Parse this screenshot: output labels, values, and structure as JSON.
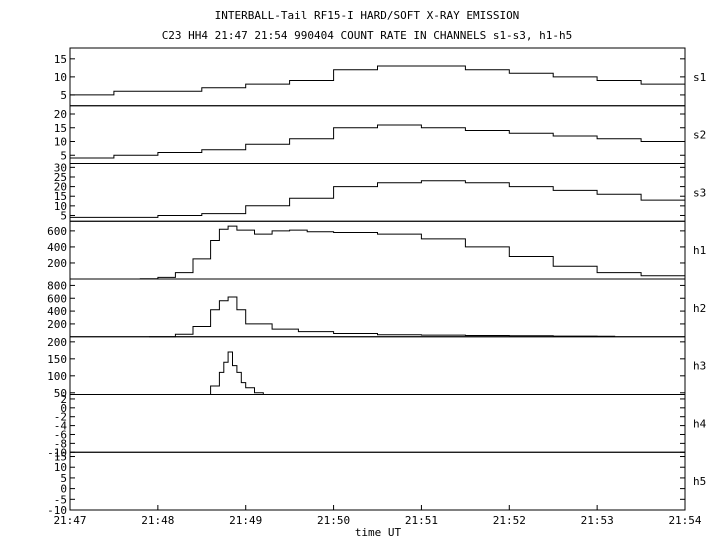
{
  "chart_data": {
    "type": "line",
    "title": "INTERBALL-Tail RF15-I HARD/SOFT X-RAY EMISSION",
    "subtitle": "C23 HH4 21:47 21:54 990404  COUNT RATE IN CHANNELS s1-s3, h1-h5",
    "xlabel": "time UT",
    "x_ticks": [
      "21:47",
      "21:48",
      "21:49",
      "21:50",
      "21:51",
      "21:52",
      "21:53",
      "21:54"
    ],
    "grid": false,
    "panels": [
      {
        "name": "s1",
        "yticks": [
          "5",
          "10",
          "15"
        ],
        "ylim": [
          2,
          18
        ],
        "x": [
          0,
          0.5,
          1,
          1.5,
          2,
          2.5,
          3,
          3.5,
          4,
          4.5,
          5,
          5.5,
          6,
          6.5,
          7
        ],
        "values": [
          5,
          6,
          6,
          7,
          8,
          9,
          12,
          13,
          13,
          12,
          11,
          10,
          9,
          8,
          7
        ]
      },
      {
        "name": "s2",
        "yticks": [
          "5",
          "10",
          "15",
          "20"
        ],
        "ylim": [
          2,
          23
        ],
        "x": [
          0,
          0.5,
          1,
          1.5,
          2,
          2.5,
          3,
          3.5,
          4,
          4.5,
          5,
          5.5,
          6,
          6.5,
          7
        ],
        "values": [
          4,
          5,
          6,
          7,
          9,
          11,
          15,
          16,
          15,
          14,
          13,
          12,
          11,
          10,
          9
        ]
      },
      {
        "name": "s3",
        "yticks": [
          "5",
          "10",
          "15",
          "20",
          "25",
          "30"
        ],
        "ylim": [
          2,
          32
        ],
        "x": [
          0,
          0.5,
          1,
          1.5,
          2,
          2.5,
          3,
          3.5,
          4,
          4.5,
          5,
          5.5,
          6,
          6.5,
          7
        ],
        "values": [
          4,
          4,
          5,
          6,
          10,
          14,
          20,
          22,
          23,
          22,
          20,
          18,
          16,
          13,
          10
        ]
      },
      {
        "name": "h1",
        "yticks": [
          "200",
          "400",
          "600"
        ],
        "ylim": [
          0,
          720
        ],
        "x": [
          0,
          0.8,
          1.0,
          1.2,
          1.4,
          1.6,
          1.7,
          1.8,
          1.9,
          2.1,
          2.3,
          2.5,
          2.7,
          3.0,
          3.5,
          4.0,
          4.5,
          5.0,
          5.5,
          6.0,
          6.5,
          7.0
        ],
        "values": [
          0,
          2,
          20,
          80,
          250,
          480,
          620,
          660,
          610,
          560,
          600,
          610,
          590,
          580,
          560,
          500,
          400,
          280,
          160,
          80,
          40,
          10
        ]
      },
      {
        "name": "h2",
        "yticks": [
          "200",
          "400",
          "600",
          "800"
        ],
        "ylim": [
          0,
          900
        ],
        "x": [
          0.9,
          1.2,
          1.4,
          1.6,
          1.7,
          1.8,
          1.9,
          2.0,
          2.3,
          2.6,
          3.0,
          3.5,
          4.0,
          4.5,
          5.0,
          5.5,
          6.0,
          6.2
        ],
        "values": [
          0,
          40,
          160,
          420,
          560,
          620,
          420,
          200,
          120,
          80,
          50,
          30,
          25,
          20,
          15,
          10,
          8,
          5
        ]
      },
      {
        "name": "h3",
        "yticks": [
          "50",
          "100",
          "150",
          "200"
        ],
        "ylim": [
          45,
          215
        ],
        "x": [
          1.5,
          1.6,
          1.7,
          1.75,
          1.8,
          1.85,
          1.9,
          1.95,
          2.0,
          2.1,
          2.2
        ],
        "values": [
          45,
          70,
          110,
          140,
          170,
          130,
          110,
          80,
          65,
          50,
          45
        ]
      },
      {
        "name": "h4",
        "yticks": [
          "-10",
          "-8",
          "-6",
          "-4",
          "-2",
          "0",
          "2"
        ],
        "ylim": [
          -10,
          3
        ],
        "x": [],
        "values": []
      },
      {
        "name": "h5",
        "yticks": [
          "-10",
          "-5",
          "0",
          "5",
          "10",
          "15"
        ],
        "ylim": [
          -10,
          17
        ],
        "x": [],
        "values": []
      }
    ]
  }
}
